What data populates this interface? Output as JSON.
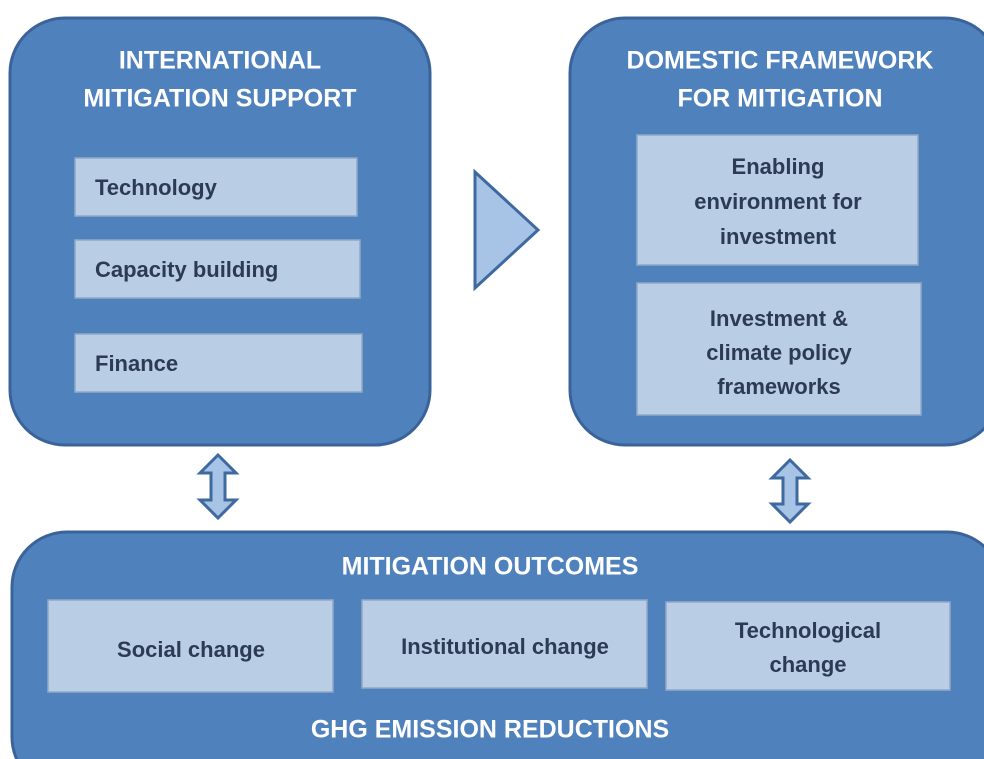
{
  "international": {
    "title": [
      "INTERNATIONAL",
      "MITIGATION SUPPORT"
    ],
    "items": [
      "Technology",
      "Capacity building",
      "Finance"
    ]
  },
  "domestic": {
    "title": [
      "DOMESTIC FRAMEWORK",
      "FOR MITIGATION"
    ],
    "items": [
      [
        "Enabling",
        "environment for",
        "investment"
      ],
      [
        "Investment &",
        "climate policy",
        "frameworks"
      ]
    ]
  },
  "outcomes": {
    "title": "MITIGATION OUTCOMES",
    "items": [
      [
        "Social change"
      ],
      [
        "Institutional change"
      ],
      [
        "Technological",
        "change"
      ]
    ],
    "footer": "GHG EMISSION REDUCTIONS"
  }
}
